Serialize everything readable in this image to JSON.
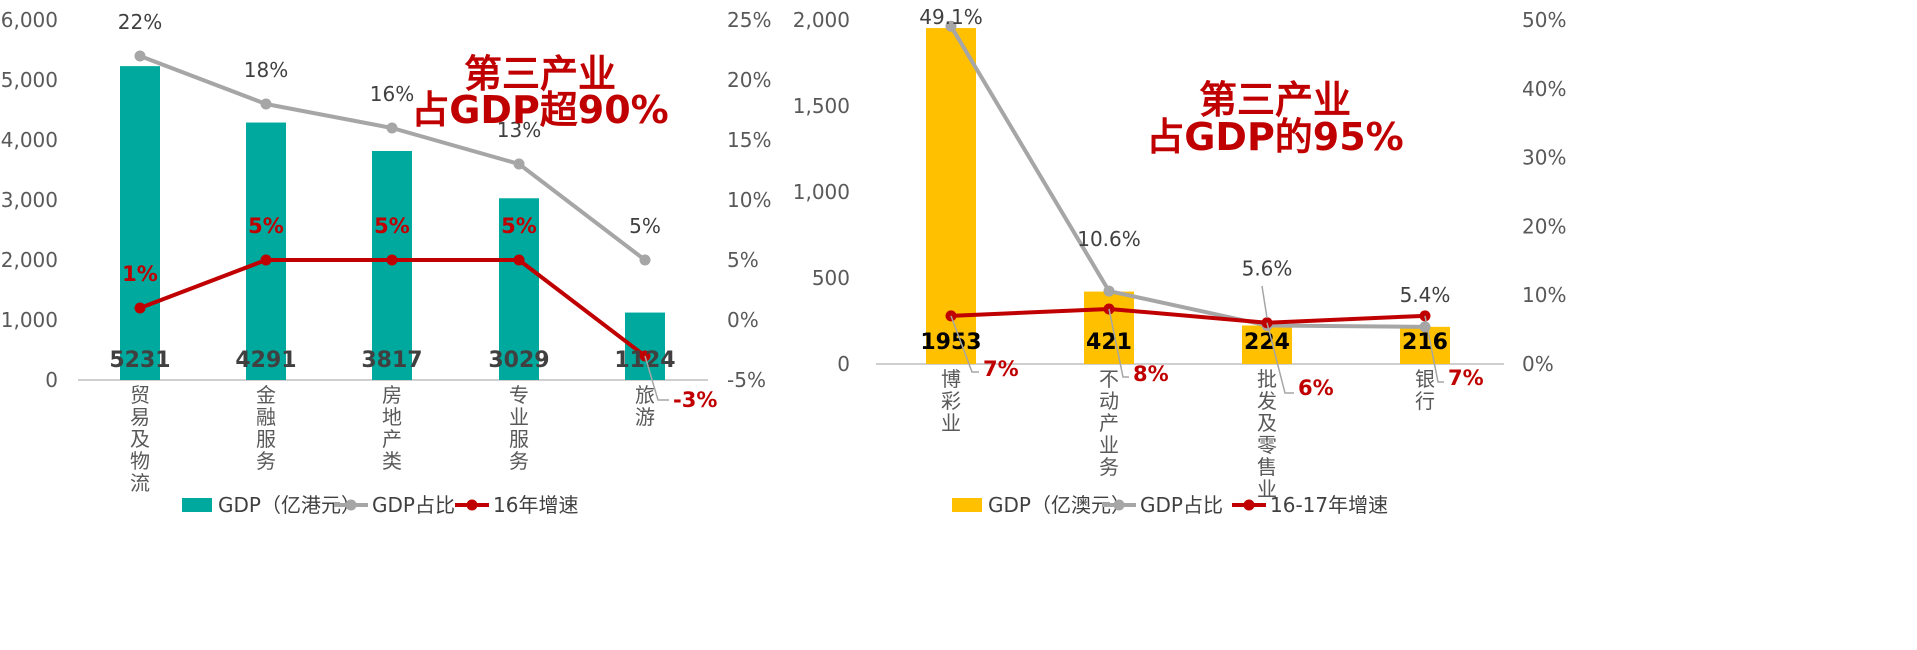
{
  "chart_data": [
    {
      "type": "bar",
      "categories": [
        "贸易及物流",
        "金融服务",
        "房地产类",
        "专业服务",
        "旅游"
      ],
      "series": [
        {
          "name": "GDP（亿港元）",
          "type": "bar",
          "axis": "left",
          "color": "#00A99D",
          "values": [
            5231,
            4291,
            3817,
            3029,
            1124
          ]
        },
        {
          "name": "GDP占比",
          "type": "line",
          "axis": "right",
          "color": "#A6A6A6",
          "values": [
            22,
            18,
            16,
            13,
            5
          ],
          "labels": [
            "22%",
            "18%",
            "16%",
            "13%",
            "5%"
          ]
        },
        {
          "name": "16年增速",
          "type": "line",
          "axis": "right",
          "color": "#C00000",
          "values": [
            1,
            5,
            5,
            5,
            -3
          ],
          "labels": [
            "1%",
            "5%",
            "5%",
            "5%",
            "-3%"
          ]
        }
      ],
      "bar_label_color": "#404040",
      "left_axis": {
        "min": 0,
        "max": 6000,
        "step": 1000,
        "ticks": [
          "0",
          "1,000",
          "2,000",
          "3,000",
          "4,000",
          "5,000",
          "6,000"
        ]
      },
      "right_axis": {
        "min": -5,
        "max": 25,
        "step": 5,
        "ticks": [
          "-5%",
          "0%",
          "5%",
          "10%",
          "15%",
          "20%",
          "25%"
        ]
      },
      "annotation": [
        "第三产业",
        "占GDP超90%"
      ],
      "legend_position": "bottom",
      "grid": false
    },
    {
      "type": "bar",
      "categories": [
        "博彩业",
        "不动产业务",
        "批发及零售业",
        "银行"
      ],
      "series": [
        {
          "name": "GDP（亿澳元）",
          "type": "bar",
          "axis": "left",
          "color": "#FFC000",
          "values": [
            1953,
            421,
            224,
            216
          ]
        },
        {
          "name": "GDP占比",
          "type": "line",
          "axis": "right",
          "color": "#A6A6A6",
          "values": [
            49.1,
            10.6,
            5.6,
            5.4
          ],
          "labels": [
            "49.1%",
            "10.6%",
            "5.6%",
            "5.4%"
          ]
        },
        {
          "name": "16-17年增速",
          "type": "line",
          "axis": "right",
          "color": "#C00000",
          "values": [
            7,
            8,
            6,
            7
          ],
          "labels": [
            "7%",
            "8%",
            "6%",
            "7%"
          ]
        }
      ],
      "bar_label_color": "#000000",
      "left_axis": {
        "min": 0,
        "max": 2000,
        "step": 500,
        "ticks": [
          "0",
          "500",
          "1,000",
          "1,500",
          "2,000"
        ]
      },
      "right_axis": {
        "min": 0,
        "max": 50,
        "step": 10,
        "ticks": [
          "0%",
          "10%",
          "20%",
          "30%",
          "40%",
          "50%"
        ]
      },
      "annotation": [
        "第三产业",
        "占GDP的95%"
      ],
      "legend_position": "bottom",
      "grid": false
    }
  ]
}
